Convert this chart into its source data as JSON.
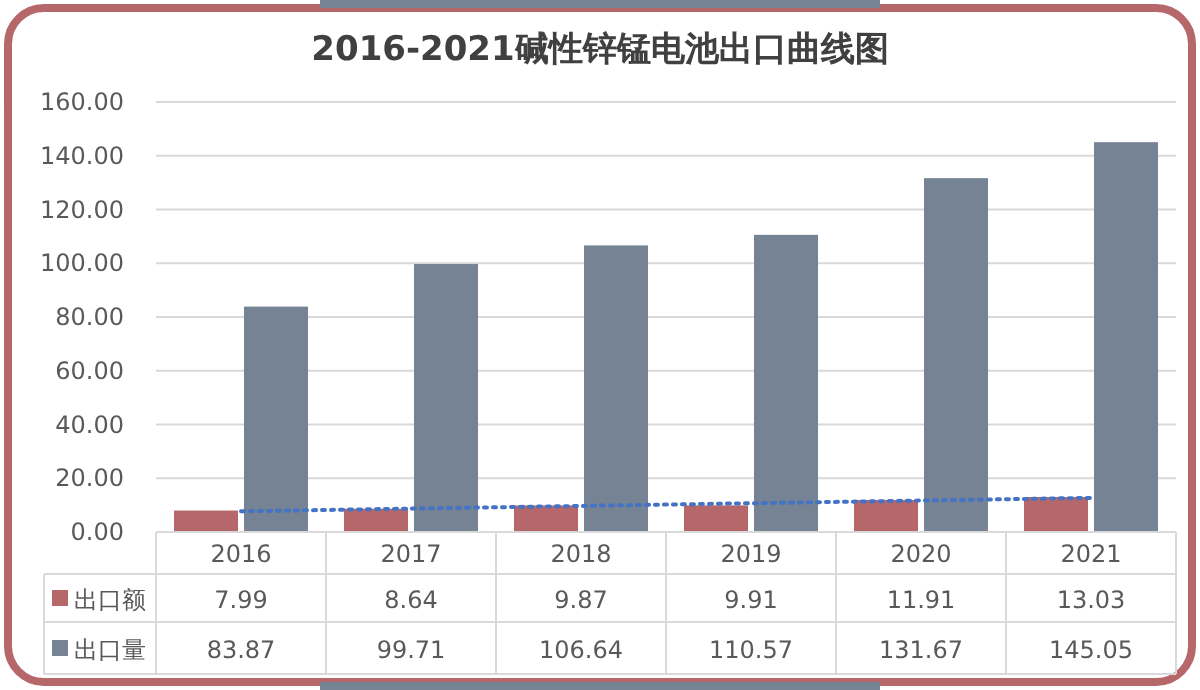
{
  "chart_data": {
    "type": "bar",
    "title": "2016-2021碱性锌锰电池出口曲线图",
    "categories": [
      "2016",
      "2017",
      "2018",
      "2019",
      "2020",
      "2021"
    ],
    "series": [
      {
        "name": "出口额",
        "color": "#b5676a",
        "values": [
          7.99,
          8.64,
          9.87,
          9.91,
          11.91,
          13.03
        ],
        "value_labels": [
          "7.99",
          "8.64",
          "9.87",
          "9.91",
          "11.91",
          "13.03"
        ]
      },
      {
        "name": "出口量",
        "color": "#768394",
        "values": [
          83.87,
          99.71,
          106.64,
          110.57,
          131.67,
          145.05
        ],
        "value_labels": [
          "83.87",
          "99.71",
          "106.64",
          "110.57",
          "131.67",
          "145.05"
        ]
      },
      {
        "type": "line",
        "color": "#4472c4",
        "line_style": "dotted",
        "values": [
          7.7,
          8.7,
          9.7,
          10.7,
          11.7,
          12.7
        ]
      }
    ],
    "ylim": [
      0,
      160
    ],
    "yticks": [
      {
        "value": 0,
        "label": "0.00"
      },
      {
        "value": 20,
        "label": "20.00"
      },
      {
        "value": 40,
        "label": "40.00"
      },
      {
        "value": 60,
        "label": "60.00"
      },
      {
        "value": 80,
        "label": "80.00"
      },
      {
        "value": 100,
        "label": "100.00"
      },
      {
        "value": 120,
        "label": "120.00"
      },
      {
        "value": 140,
        "label": "140.00"
      },
      {
        "value": 160,
        "label": "160.00"
      }
    ],
    "grid": "y",
    "legend": "bottom left"
  }
}
